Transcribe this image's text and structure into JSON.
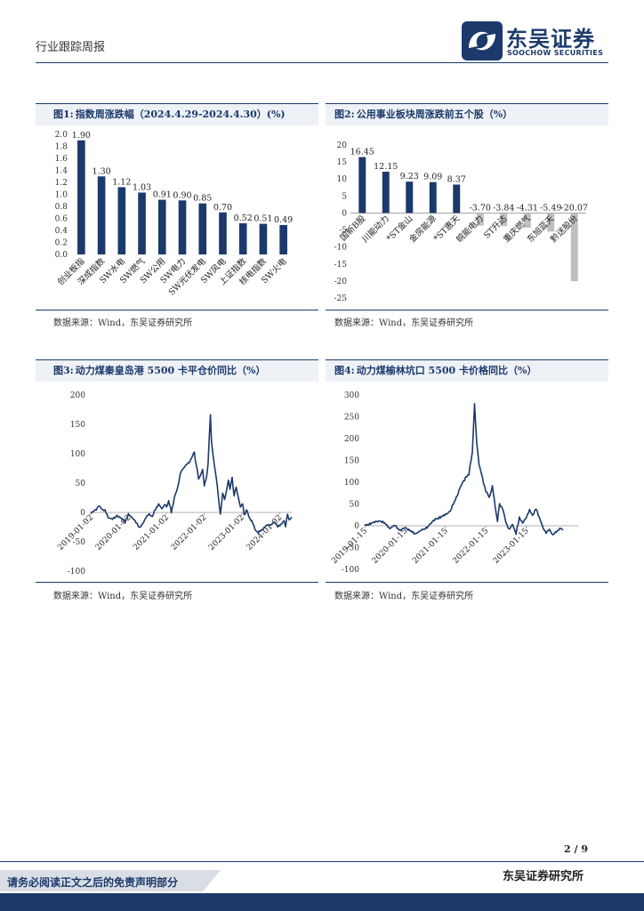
{
  "header": {
    "report_type": "行业跟踪周报",
    "logo_cn": "东吴证券",
    "logo_en": "SOOCHOW SECURITIES",
    "logo_icon": "soochow-logo-icon"
  },
  "figures": [
    {
      "num": "图1:",
      "title": "指数周涨跌幅（2024.4.29-2024.4.30）(%)",
      "source": "数据来源：Wind，东吴证券研究所"
    },
    {
      "num": "图2:",
      "title": "公用事业板块周涨跌前五个股（%）",
      "source": "数据来源：Wind，东吴证券研究所"
    },
    {
      "num": "图3:",
      "title": "动力煤秦皇岛港 5500 卡平仓价同比（%）",
      "source": "数据来源：Wind，东吴证券研究所"
    },
    {
      "num": "图4:",
      "title": "动力煤榆林坑口 5500 卡价格同比（%）",
      "source": "数据来源：Wind，东吴证券研究所"
    }
  ],
  "chart_data": [
    {
      "type": "bar",
      "categories": [
        "创业板指",
        "深成指数",
        "SW水电",
        "SW燃气",
        "SW公用",
        "SW电力",
        "SW光伏发电",
        "SW风电",
        "上证指数",
        "核电指数",
        "SW火电"
      ],
      "values": [
        1.9,
        1.3,
        1.12,
        1.03,
        0.91,
        0.9,
        0.85,
        0.7,
        0.52,
        0.51,
        0.49
      ],
      "value_labels": [
        "1.90",
        "1.30",
        "1.12",
        "1.03",
        "0.91",
        "0.90",
        "0.85",
        "0.70",
        "0.52",
        "0.51",
        "0.49"
      ],
      "yticks": [
        "2.0",
        "1.8",
        "1.6",
        "1.4",
        "1.2",
        "1.0",
        "0.8",
        "0.6",
        "0.4",
        "0.2",
        "0.0"
      ],
      "ylim": [
        0,
        2.0
      ],
      "color": "#1b3a6b"
    },
    {
      "type": "bar",
      "categories": [
        "国新B股",
        "川能动力",
        "*ST金山",
        "金房能源",
        "*ST惠天",
        "皖能电力",
        "ST升达",
        "重庆燃气",
        "东旭蓝天",
        "黔送股份"
      ],
      "values": [
        16.45,
        12.15,
        9.23,
        9.09,
        8.37,
        -3.7,
        -3.84,
        -4.31,
        -5.49,
        -20.07
      ],
      "value_labels": [
        "16.45",
        "12.15",
        "9.23",
        "9.09",
        "8.37",
        "-3.70",
        "-3.84",
        "-4.31",
        "-5.49",
        "-20.07"
      ],
      "yticks": [
        "20",
        "15",
        "10",
        "5",
        "0",
        "-5",
        "-10",
        "-15",
        "-20",
        "-25"
      ],
      "ylim": [
        -25,
        20
      ],
      "colors": {
        "positive": "#1b3a6b",
        "negative": "#bfbfbf"
      }
    },
    {
      "type": "line",
      "xticks": [
        "2019-01-02",
        "2020-01-02",
        "2021-01-02",
        "2022-01-02",
        "2023-01-02",
        "2024-01-02"
      ],
      "yticks": [
        "200",
        "150",
        "100",
        "50",
        "0",
        "-50",
        "-100"
      ],
      "ylim": [
        -100,
        200
      ],
      "x_range": [
        "2019-01-02",
        "2024-04-30"
      ],
      "keypoints": [
        [
          "2019-01-02",
          -2
        ],
        [
          "2019-02-15",
          4
        ],
        [
          "2019-03-20",
          11
        ],
        [
          "2019-04-20",
          6
        ],
        [
          "2019-05-20",
          3
        ],
        [
          "2019-06-20",
          -8
        ],
        [
          "2019-08-01",
          -12
        ],
        [
          "2019-09-15",
          -5
        ],
        [
          "2019-10-20",
          -10
        ],
        [
          "2019-12-01",
          -15
        ],
        [
          "2020-01-02",
          -4
        ],
        [
          "2020-02-10",
          -8
        ],
        [
          "2020-03-15",
          -18
        ],
        [
          "2020-04-20",
          -25
        ],
        [
          "2020-05-20",
          -20
        ],
        [
          "2020-06-20",
          -7
        ],
        [
          "2020-07-20",
          -4
        ],
        [
          "2020-08-20",
          -6
        ],
        [
          "2020-09-20",
          5
        ],
        [
          "2020-10-20",
          15
        ],
        [
          "2020-11-20",
          5
        ],
        [
          "2020-12-15",
          15
        ],
        [
          "2021-01-05",
          8
        ],
        [
          "2021-01-25",
          20
        ],
        [
          "2021-02-20",
          0
        ],
        [
          "2021-03-20",
          25
        ],
        [
          "2021-04-20",
          40
        ],
        [
          "2021-05-15",
          65
        ],
        [
          "2021-06-15",
          75
        ],
        [
          "2021-07-10",
          80
        ],
        [
          "2021-08-10",
          85
        ],
        [
          "2021-09-10",
          95
        ],
        [
          "2021-10-01",
          102
        ],
        [
          "2021-10-20",
          80
        ],
        [
          "2021-11-10",
          58
        ],
        [
          "2021-12-01",
          62
        ],
        [
          "2021-12-20",
          75
        ],
        [
          "2022-01-05",
          45
        ],
        [
          "2022-01-20",
          55
        ],
        [
          "2022-02-10",
          80
        ],
        [
          "2022-03-05",
          170
        ],
        [
          "2022-03-15",
          120
        ],
        [
          "2022-04-10",
          85
        ],
        [
          "2022-05-01",
          58
        ],
        [
          "2022-05-20",
          28
        ],
        [
          "2022-06-10",
          -5
        ],
        [
          "2022-07-01",
          35
        ],
        [
          "2022-07-20",
          20
        ],
        [
          "2022-08-10",
          40
        ],
        [
          "2022-08-25",
          55
        ],
        [
          "2022-09-10",
          40
        ],
        [
          "2022-10-01",
          58
        ],
        [
          "2022-10-20",
          30
        ],
        [
          "2022-11-10",
          42
        ],
        [
          "2022-12-01",
          25
        ],
        [
          "2022-12-20",
          10
        ],
        [
          "2023-01-10",
          15
        ],
        [
          "2023-01-25",
          -5
        ],
        [
          "2023-02-15",
          5
        ],
        [
          "2023-03-15",
          -8
        ],
        [
          "2023-04-10",
          -15
        ],
        [
          "2023-05-10",
          -28
        ],
        [
          "2023-06-10",
          -35
        ],
        [
          "2023-07-10",
          -30
        ],
        [
          "2023-08-15",
          -25
        ],
        [
          "2023-09-15",
          -20
        ],
        [
          "2023-10-15",
          -22
        ],
        [
          "2023-11-15",
          -15
        ],
        [
          "2023-12-15",
          -25
        ],
        [
          "2024-01-15",
          -20
        ],
        [
          "2024-02-15",
          -15
        ],
        [
          "2024-03-01",
          -22
        ],
        [
          "2024-03-20",
          -5
        ],
        [
          "2024-04-05",
          -12
        ],
        [
          "2024-04-30",
          -8
        ]
      ],
      "color": "#1b3a6b"
    },
    {
      "type": "line",
      "xticks": [
        "2019-01-15",
        "2020-01-15",
        "2021-01-15",
        "2022-01-15",
        "2023-01-15"
      ],
      "yticks": [
        "300",
        "250",
        "200",
        "150",
        "100",
        "50",
        "0",
        "-50",
        "-100"
      ],
      "ylim": [
        -100,
        300
      ],
      "x_range": [
        "2019-01-15",
        "2024-04-30"
      ],
      "keypoints": [
        [
          "2019-01-15",
          0
        ],
        [
          "2019-03-01",
          5
        ],
        [
          "2019-04-15",
          8
        ],
        [
          "2019-06-01",
          12
        ],
        [
          "2019-07-15",
          5
        ],
        [
          "2019-09-01",
          -5
        ],
        [
          "2019-10-15",
          0
        ],
        [
          "2019-12-01",
          -10
        ],
        [
          "2020-01-15",
          -5
        ],
        [
          "2020-03-01",
          -10
        ],
        [
          "2020-04-15",
          -20
        ],
        [
          "2020-06-01",
          -10
        ],
        [
          "2020-07-15",
          -8
        ],
        [
          "2020-09-01",
          5
        ],
        [
          "2020-10-15",
          15
        ],
        [
          "2020-12-01",
          20
        ],
        [
          "2021-01-15",
          25
        ],
        [
          "2021-03-01",
          35
        ],
        [
          "2021-04-15",
          60
        ],
        [
          "2021-06-01",
          90
        ],
        [
          "2021-07-15",
          110
        ],
        [
          "2021-08-15",
          120
        ],
        [
          "2021-09-15",
          165
        ],
        [
          "2021-10-05",
          280
        ],
        [
          "2021-10-25",
          190
        ],
        [
          "2021-11-15",
          140
        ],
        [
          "2021-12-15",
          110
        ],
        [
          "2022-01-15",
          80
        ],
        [
          "2022-02-15",
          65
        ],
        [
          "2022-03-15",
          90
        ],
        [
          "2022-04-10",
          45
        ],
        [
          "2022-05-01",
          10
        ],
        [
          "2022-05-20",
          50
        ],
        [
          "2022-06-15",
          40
        ],
        [
          "2022-07-15",
          10
        ],
        [
          "2022-08-15",
          -10
        ],
        [
          "2022-09-15",
          5
        ],
        [
          "2022-10-15",
          -20
        ],
        [
          "2022-11-15",
          20
        ],
        [
          "2022-12-15",
          5
        ],
        [
          "2023-01-15",
          20
        ],
        [
          "2023-02-15",
          35
        ],
        [
          "2023-03-15",
          25
        ],
        [
          "2023-04-15",
          38
        ],
        [
          "2023-05-15",
          20
        ],
        [
          "2023-06-15",
          -5
        ],
        [
          "2023-07-15",
          -15
        ],
        [
          "2023-08-15",
          -10
        ],
        [
          "2023-09-15",
          -20
        ],
        [
          "2023-10-15",
          -15
        ],
        [
          "2023-11-15",
          -5
        ],
        [
          "2023-12-15",
          -10
        ]
      ],
      "color": "#1b3a6b"
    }
  ],
  "footer": {
    "page": "2 / 9",
    "brand": "东吴证券研究所",
    "disclaimer": "请务必阅读正文之后的免责声明部分"
  }
}
